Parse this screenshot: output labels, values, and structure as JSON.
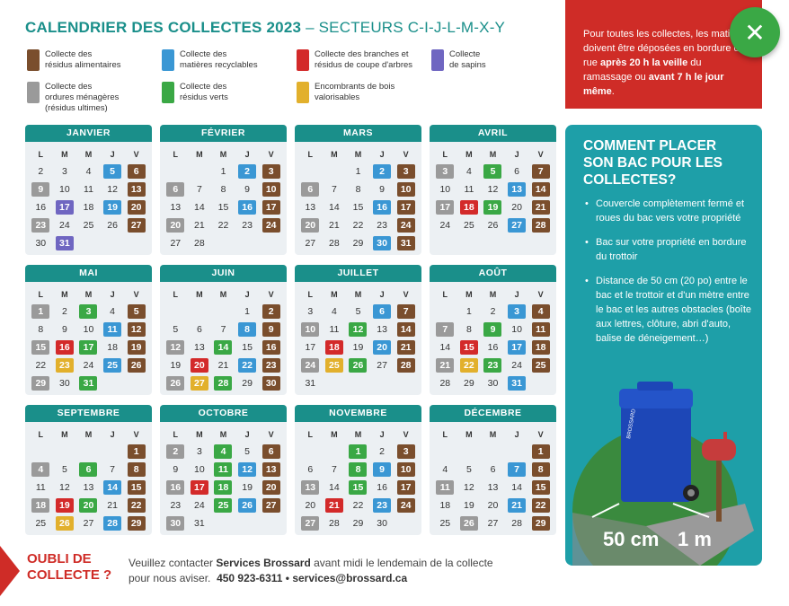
{
  "title": {
    "bold": "CALENDRIER DES COLLECTES 2023",
    "light": " – SECTEURS C-I-J-L-M-X-Y"
  },
  "colors": {
    "brown": "#7a4e2d",
    "blue": "#3a97d4",
    "red": "#d32a2a",
    "purple": "#6f66c1",
    "gray": "#9a9a9a",
    "green": "#3aa845",
    "yellow": "#e2b02c",
    "teal": "#1a8f8a"
  },
  "legend": [
    {
      "color": "brown",
      "label": "Collecte des\nrésidus alimentaires"
    },
    {
      "color": "blue",
      "label": "Collecte des\nmatières recyclables"
    },
    {
      "color": "red",
      "label": "Collecte des branches et\nrésidus de coupe d'arbres"
    },
    {
      "color": "purple",
      "label": "Collecte\nde sapins"
    },
    {
      "color": "gray",
      "label": "Collecte des\nordures ménagères\n(résidus ultimes)"
    },
    {
      "color": "green",
      "label": "Collecte des\nrésidus verts"
    },
    {
      "color": "yellow",
      "label": "Encombrants de bois\nvalorisables"
    }
  ],
  "weekdays": [
    "L",
    "M",
    "M",
    "J",
    "V"
  ],
  "months": [
    {
      "name": "JANVIER",
      "offset": 0,
      "days": [
        [
          2,
          ""
        ],
        [
          3,
          ""
        ],
        [
          4,
          ""
        ],
        [
          5,
          "blue"
        ],
        [
          6,
          "brown"
        ],
        [
          9,
          "gray"
        ],
        [
          10,
          ""
        ],
        [
          11,
          ""
        ],
        [
          12,
          ""
        ],
        [
          13,
          "brown"
        ],
        [
          16,
          ""
        ],
        [
          17,
          "purple"
        ],
        [
          18,
          ""
        ],
        [
          19,
          "blue"
        ],
        [
          20,
          "brown"
        ],
        [
          23,
          "gray"
        ],
        [
          24,
          ""
        ],
        [
          25,
          ""
        ],
        [
          26,
          ""
        ],
        [
          27,
          "brown"
        ],
        [
          30,
          ""
        ],
        [
          31,
          "purple"
        ]
      ]
    },
    {
      "name": "FÉVRIER",
      "offset": 2,
      "days": [
        [
          1,
          ""
        ],
        [
          2,
          "blue"
        ],
        [
          3,
          "brown"
        ],
        [
          6,
          "gray"
        ],
        [
          7,
          ""
        ],
        [
          8,
          ""
        ],
        [
          9,
          ""
        ],
        [
          10,
          "brown"
        ],
        [
          13,
          ""
        ],
        [
          14,
          ""
        ],
        [
          15,
          ""
        ],
        [
          16,
          "blue"
        ],
        [
          17,
          "brown"
        ],
        [
          20,
          "gray"
        ],
        [
          21,
          ""
        ],
        [
          22,
          ""
        ],
        [
          23,
          ""
        ],
        [
          24,
          "brown"
        ],
        [
          27,
          ""
        ],
        [
          28,
          ""
        ]
      ]
    },
    {
      "name": "MARS",
      "offset": 2,
      "days": [
        [
          1,
          ""
        ],
        [
          2,
          "blue"
        ],
        [
          3,
          "brown"
        ],
        [
          6,
          "gray"
        ],
        [
          7,
          ""
        ],
        [
          8,
          ""
        ],
        [
          9,
          ""
        ],
        [
          10,
          "brown"
        ],
        [
          13,
          ""
        ],
        [
          14,
          ""
        ],
        [
          15,
          ""
        ],
        [
          16,
          "blue"
        ],
        [
          17,
          "brown"
        ],
        [
          20,
          "gray"
        ],
        [
          21,
          ""
        ],
        [
          22,
          ""
        ],
        [
          23,
          ""
        ],
        [
          24,
          "brown"
        ],
        [
          27,
          ""
        ],
        [
          28,
          ""
        ],
        [
          29,
          ""
        ],
        [
          30,
          "blue"
        ],
        [
          31,
          "brown"
        ]
      ]
    },
    {
      "name": "AVRIL",
      "offset": 0,
      "days": [
        [
          3,
          "gray"
        ],
        [
          4,
          ""
        ],
        [
          5,
          "green"
        ],
        [
          6,
          ""
        ],
        [
          7,
          "brown"
        ],
        [
          10,
          ""
        ],
        [
          11,
          ""
        ],
        [
          12,
          ""
        ],
        [
          13,
          "blue"
        ],
        [
          14,
          "brown"
        ],
        [
          17,
          "gray"
        ],
        [
          18,
          "red"
        ],
        [
          19,
          "green"
        ],
        [
          20,
          ""
        ],
        [
          21,
          "brown"
        ],
        [
          24,
          ""
        ],
        [
          25,
          ""
        ],
        [
          26,
          ""
        ],
        [
          27,
          "blue"
        ],
        [
          28,
          "brown"
        ]
      ]
    },
    {
      "name": "MAI",
      "offset": 0,
      "days": [
        [
          1,
          "gray"
        ],
        [
          2,
          ""
        ],
        [
          3,
          "green"
        ],
        [
          4,
          ""
        ],
        [
          5,
          "brown"
        ],
        [
          8,
          ""
        ],
        [
          9,
          ""
        ],
        [
          10,
          ""
        ],
        [
          11,
          "blue"
        ],
        [
          12,
          "brown"
        ],
        [
          15,
          "gray"
        ],
        [
          16,
          "red"
        ],
        [
          17,
          "green"
        ],
        [
          18,
          ""
        ],
        [
          19,
          "brown"
        ],
        [
          22,
          ""
        ],
        [
          23,
          "yellow"
        ],
        [
          24,
          ""
        ],
        [
          25,
          "blue"
        ],
        [
          26,
          "brown"
        ],
        [
          29,
          "gray"
        ],
        [
          30,
          ""
        ],
        [
          31,
          "green"
        ]
      ]
    },
    {
      "name": "JUIN",
      "offset": 3,
      "days": [
        [
          1,
          ""
        ],
        [
          2,
          "brown"
        ],
        [
          5,
          ""
        ],
        [
          6,
          ""
        ],
        [
          7,
          ""
        ],
        [
          8,
          "blue"
        ],
        [
          9,
          "brown"
        ],
        [
          12,
          "gray"
        ],
        [
          13,
          ""
        ],
        [
          14,
          "green"
        ],
        [
          15,
          ""
        ],
        [
          16,
          "brown"
        ],
        [
          19,
          ""
        ],
        [
          20,
          "red"
        ],
        [
          21,
          ""
        ],
        [
          22,
          "blue"
        ],
        [
          23,
          "brown"
        ],
        [
          26,
          "gray"
        ],
        [
          27,
          "yellow"
        ],
        [
          28,
          "green"
        ],
        [
          29,
          ""
        ],
        [
          30,
          "brown"
        ]
      ]
    },
    {
      "name": "JUILLET",
      "offset": 0,
      "days": [
        [
          3,
          ""
        ],
        [
          4,
          ""
        ],
        [
          5,
          ""
        ],
        [
          6,
          "blue"
        ],
        [
          7,
          "brown"
        ],
        [
          10,
          "gray"
        ],
        [
          11,
          ""
        ],
        [
          12,
          "green"
        ],
        [
          13,
          ""
        ],
        [
          14,
          "brown"
        ],
        [
          17,
          ""
        ],
        [
          18,
          "red"
        ],
        [
          19,
          ""
        ],
        [
          20,
          "blue"
        ],
        [
          21,
          "brown"
        ],
        [
          24,
          "gray"
        ],
        [
          25,
          "yellow"
        ],
        [
          26,
          "green"
        ],
        [
          27,
          ""
        ],
        [
          28,
          "brown"
        ],
        [
          31,
          ""
        ]
      ]
    },
    {
      "name": "AOÛT",
      "offset": 1,
      "days": [
        [
          1,
          ""
        ],
        [
          2,
          ""
        ],
        [
          3,
          "blue"
        ],
        [
          4,
          "brown"
        ],
        [
          7,
          "gray"
        ],
        [
          8,
          ""
        ],
        [
          9,
          "green"
        ],
        [
          10,
          ""
        ],
        [
          11,
          "brown"
        ],
        [
          14,
          ""
        ],
        [
          15,
          "red"
        ],
        [
          16,
          ""
        ],
        [
          17,
          "blue"
        ],
        [
          18,
          "brown"
        ],
        [
          21,
          "gray"
        ],
        [
          22,
          "yellow"
        ],
        [
          23,
          "green"
        ],
        [
          24,
          ""
        ],
        [
          25,
          "brown"
        ],
        [
          28,
          ""
        ],
        [
          29,
          ""
        ],
        [
          30,
          ""
        ],
        [
          31,
          "blue"
        ]
      ]
    },
    {
      "name": "SEPTEMBRE",
      "offset": 4,
      "days": [
        [
          1,
          "brown"
        ],
        [
          4,
          "gray"
        ],
        [
          5,
          ""
        ],
        [
          6,
          "green"
        ],
        [
          7,
          ""
        ],
        [
          8,
          "brown"
        ],
        [
          11,
          ""
        ],
        [
          12,
          ""
        ],
        [
          13,
          ""
        ],
        [
          14,
          "blue"
        ],
        [
          15,
          "brown"
        ],
        [
          18,
          "gray"
        ],
        [
          19,
          "red"
        ],
        [
          20,
          "green"
        ],
        [
          21,
          ""
        ],
        [
          22,
          "brown"
        ],
        [
          25,
          ""
        ],
        [
          26,
          "yellow"
        ],
        [
          27,
          ""
        ],
        [
          28,
          "blue"
        ],
        [
          29,
          "brown"
        ]
      ]
    },
    {
      "name": "OCTOBRE",
      "offset": 0,
      "days": [
        [
          2,
          "gray"
        ],
        [
          3,
          ""
        ],
        [
          4,
          "green"
        ],
        [
          5,
          ""
        ],
        [
          6,
          "brown"
        ],
        [
          9,
          ""
        ],
        [
          10,
          ""
        ],
        [
          11,
          "green"
        ],
        [
          12,
          "blue"
        ],
        [
          13,
          "brown"
        ],
        [
          16,
          "gray"
        ],
        [
          17,
          "red"
        ],
        [
          18,
          "green"
        ],
        [
          19,
          ""
        ],
        [
          20,
          "brown"
        ],
        [
          23,
          ""
        ],
        [
          24,
          ""
        ],
        [
          25,
          "green"
        ],
        [
          26,
          "blue"
        ],
        [
          27,
          "brown"
        ],
        [
          30,
          "gray"
        ],
        [
          31,
          ""
        ]
      ]
    },
    {
      "name": "NOVEMBRE",
      "offset": 2,
      "days": [
        [
          1,
          "green"
        ],
        [
          2,
          ""
        ],
        [
          3,
          "brown"
        ],
        [
          6,
          ""
        ],
        [
          7,
          ""
        ],
        [
          8,
          "green"
        ],
        [
          9,
          "blue"
        ],
        [
          10,
          "brown"
        ],
        [
          13,
          "gray"
        ],
        [
          14,
          ""
        ],
        [
          15,
          "green"
        ],
        [
          16,
          ""
        ],
        [
          17,
          "brown"
        ],
        [
          20,
          ""
        ],
        [
          21,
          "red"
        ],
        [
          22,
          ""
        ],
        [
          23,
          "blue"
        ],
        [
          24,
          "brown"
        ],
        [
          27,
          "gray"
        ],
        [
          28,
          ""
        ],
        [
          29,
          ""
        ],
        [
          30,
          ""
        ]
      ]
    },
    {
      "name": "DÉCEMBRE",
      "offset": 4,
      "days": [
        [
          1,
          "brown"
        ],
        [
          4,
          ""
        ],
        [
          5,
          ""
        ],
        [
          6,
          ""
        ],
        [
          7,
          "blue"
        ],
        [
          8,
          "brown"
        ],
        [
          11,
          "gray"
        ],
        [
          12,
          ""
        ],
        [
          13,
          ""
        ],
        [
          14,
          ""
        ],
        [
          15,
          "brown"
        ],
        [
          18,
          ""
        ],
        [
          19,
          ""
        ],
        [
          20,
          ""
        ],
        [
          21,
          "blue"
        ],
        [
          22,
          "brown"
        ],
        [
          25,
          ""
        ],
        [
          26,
          "gray"
        ],
        [
          27,
          ""
        ],
        [
          28,
          ""
        ],
        [
          29,
          "brown"
        ]
      ]
    }
  ],
  "notice": {
    "part1": "Pour toutes les collectes, les matières doivent être déposées en bordure de rue ",
    "bold1": "après 20 h la veille",
    "part2": " du ramassage ou ",
    "bold2": "avant 7 h le jour même",
    "part3": "."
  },
  "close_icon": "close-icon",
  "howto": {
    "title": "COMMENT PLACER SON BAC POUR LES COLLECTES?",
    "items": [
      "Couvercle complètement fermé et roues du bac vers votre propriété",
      "Bac sur votre propriété en bordure du trottoir",
      "Distance de 50 cm (20 po) entre le bac et le trottoir et d'un mètre entre le bac et les autres obstacles (boîte aux lettres, clôture, abri d'auto, balise de déneigement…)"
    ],
    "dist1": "50 cm",
    "dist2": "1 m",
    "bin_label": "BROSSARD"
  },
  "footer": {
    "heading": "OUBLI DE\nCOLLECTE ?",
    "line1a": "Veuillez contacter ",
    "line1b": "Services Brossard",
    "line1c": " avant midi le lendemain de la collecte",
    "line2a": "pour nous aviser.",
    "line2b": "450 923-6311 • services@brossard.ca"
  }
}
